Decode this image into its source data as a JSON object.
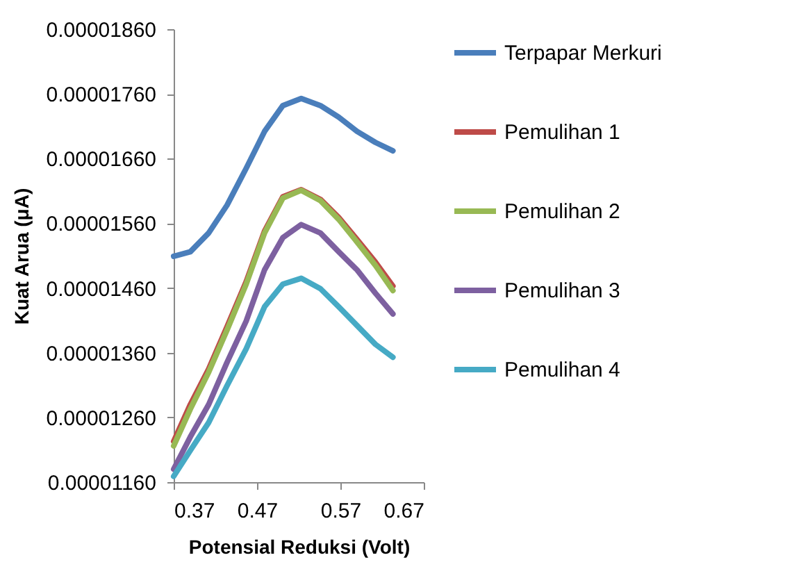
{
  "chart_data": {
    "type": "line",
    "xlabel": "Potensial Reduksi (Volt)",
    "ylabel": "Kuat Arua (μA)",
    "x": [
      0.37,
      0.39,
      0.412,
      0.434,
      0.457,
      0.479,
      0.501,
      0.523,
      0.546,
      0.568,
      0.59,
      0.612,
      0.633
    ],
    "series": [
      {
        "name": "Terpapar Merkuri",
        "color": "#4a7ebb",
        "values": [
          1.509e-05,
          1.516e-05,
          1.545e-05,
          1.588e-05,
          1.645e-05,
          1.702e-05,
          1.742e-05,
          1.753e-05,
          1.742e-05,
          1.724e-05,
          1.702e-05,
          1.685e-05,
          1.672e-05
        ]
      },
      {
        "name": "Pemulihan 1",
        "color": "#be4b48",
        "values": [
          1.223e-05,
          1.28e-05,
          1.335e-05,
          1.4e-05,
          1.47e-05,
          1.548e-05,
          1.601e-05,
          1.612e-05,
          1.597e-05,
          1.569e-05,
          1.535e-05,
          1.5e-05,
          1.463e-05
        ]
      },
      {
        "name": "Pemulihan 2",
        "color": "#98b954",
        "values": [
          1.216e-05,
          1.273e-05,
          1.33e-05,
          1.395e-05,
          1.466e-05,
          1.545e-05,
          1.599e-05,
          1.611e-05,
          1.595e-05,
          1.566e-05,
          1.531e-05,
          1.495e-05,
          1.456e-05
        ]
      },
      {
        "name": "Pemulihan 3",
        "color": "#7d60a0",
        "values": [
          1.18e-05,
          1.23e-05,
          1.28e-05,
          1.345e-05,
          1.409e-05,
          1.488e-05,
          1.538e-05,
          1.558e-05,
          1.545e-05,
          1.516e-05,
          1.488e-05,
          1.452e-05,
          1.42e-05
        ]
      },
      {
        "name": "Pemulihan 4",
        "color": "#46aac5",
        "values": [
          1.169e-05,
          1.209e-05,
          1.252e-05,
          1.309e-05,
          1.366e-05,
          1.431e-05,
          1.466e-05,
          1.475e-05,
          1.459e-05,
          1.431e-05,
          1.402e-05,
          1.373e-05,
          1.353e-05
        ]
      }
    ],
    "xlim": [
      0.37,
      0.67
    ],
    "xticks": [
      0.37,
      0.47,
      0.57,
      0.67
    ],
    "ylim": [
      1.16e-05,
      1.86e-05
    ],
    "yticks": [
      {
        "value": 1.16e-05,
        "label": "0.00001160"
      },
      {
        "value": 1.26e-05,
        "label": "0.00001260"
      },
      {
        "value": 1.36e-05,
        "label": "0.00001360"
      },
      {
        "value": 1.46e-05,
        "label": "0.00001460"
      },
      {
        "value": 1.56e-05,
        "label": "0.00001560"
      },
      {
        "value": 1.66e-05,
        "label": "0.00001660"
      },
      {
        "value": 1.76e-05,
        "label": "0.00001760"
      },
      {
        "value": 1.86e-05,
        "label": "0.00001860"
      }
    ],
    "grid": false,
    "legend": "right",
    "marker": "none",
    "line_style": "solid"
  }
}
